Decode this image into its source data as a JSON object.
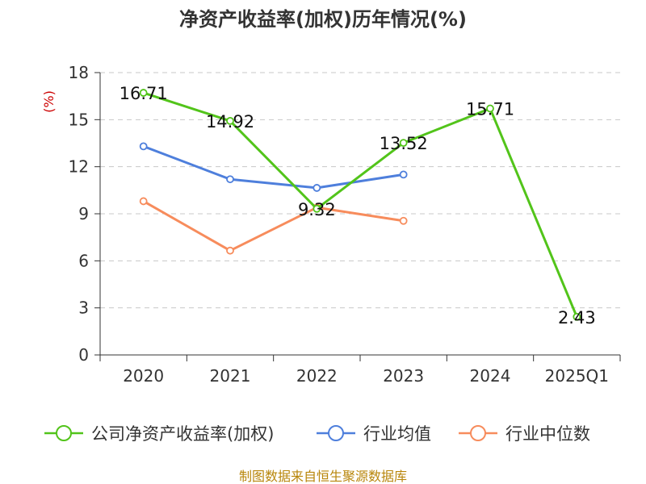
{
  "chart_data": {
    "type": "line",
    "title": "净资产收益率(加权)历年情况(%)",
    "ylabel": "(%)",
    "categories": [
      "2020",
      "2021",
      "2022",
      "2023",
      "2024",
      "2025Q1"
    ],
    "ylim": [
      0,
      18
    ],
    "yticks": [
      0,
      3,
      6,
      9,
      12,
      15,
      18
    ],
    "grid": true,
    "legend_position": "bottom",
    "series": [
      {
        "name": "公司净资产收益率(加权)",
        "color": "#52c41a",
        "values": [
          16.71,
          14.92,
          9.32,
          13.52,
          15.71,
          2.43
        ],
        "labels": [
          "16.71",
          "14.92",
          "9.32",
          "13.52",
          "15.71",
          "2.43"
        ]
      },
      {
        "name": "行业均值",
        "color": "#4e7fdc",
        "values": [
          13.3,
          11.2,
          10.65,
          11.5,
          null,
          null
        ]
      },
      {
        "name": "行业中位数",
        "color": "#f78c5c",
        "values": [
          9.8,
          6.65,
          9.4,
          8.55,
          null,
          null
        ]
      }
    ]
  },
  "source_text": "制图数据来自恒生聚源数据库"
}
